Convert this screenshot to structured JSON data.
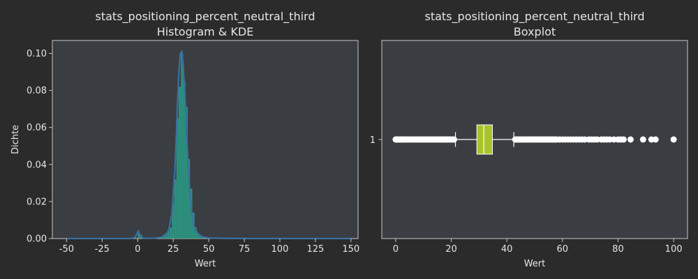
{
  "chart_data": [
    {
      "type": "histogram",
      "title": "stats_positioning_percent_neutral_third",
      "subtitle": "Histogram & KDE",
      "xlabel": "Wert",
      "ylabel": "Dichte",
      "xlim": [
        -60,
        155
      ],
      "ylim": [
        0,
        0.107
      ],
      "xticks": [
        -50,
        -25,
        0,
        25,
        50,
        75,
        100,
        125,
        150
      ],
      "yticks": [
        0.0,
        0.02,
        0.04,
        0.06,
        0.08,
        0.1
      ],
      "grid": false,
      "histogram": {
        "color": "#2a9d86",
        "bin_width": 1.6,
        "bins": [
          {
            "x": 0.0,
            "y": 0.003
          },
          {
            "x": 1.6,
            "y": 0.002
          },
          {
            "x": 16.0,
            "y": 0.001
          },
          {
            "x": 17.6,
            "y": 0.002
          },
          {
            "x": 19.2,
            "y": 0.003
          },
          {
            "x": 20.8,
            "y": 0.004
          },
          {
            "x": 22.4,
            "y": 0.006
          },
          {
            "x": 24.0,
            "y": 0.019
          },
          {
            "x": 25.6,
            "y": 0.032
          },
          {
            "x": 27.2,
            "y": 0.065
          },
          {
            "x": 28.8,
            "y": 0.082
          },
          {
            "x": 30.4,
            "y": 0.1
          },
          {
            "x": 32.0,
            "y": 0.085
          },
          {
            "x": 33.6,
            "y": 0.071
          },
          {
            "x": 35.2,
            "y": 0.043
          },
          {
            "x": 36.8,
            "y": 0.027
          },
          {
            "x": 38.4,
            "y": 0.014
          },
          {
            "x": 40.0,
            "y": 0.006
          },
          {
            "x": 41.6,
            "y": 0.003
          },
          {
            "x": 43.2,
            "y": 0.002
          },
          {
            "x": 44.8,
            "y": 0.001
          }
        ]
      },
      "kde": {
        "color": "#3b6fa0",
        "x": [
          -50,
          -20,
          -5,
          -2,
          -1,
          0,
          0.5,
          1,
          2,
          4,
          10,
          15,
          18,
          20,
          22,
          24,
          26,
          27,
          28,
          29,
          30,
          31,
          32,
          33,
          34,
          35,
          36,
          37,
          38,
          39,
          40,
          42,
          44,
          46,
          50,
          60,
          80,
          100,
          150
        ],
        "y": [
          0,
          0,
          0,
          0.0005,
          0.002,
          0.0035,
          0.004,
          0.003,
          0.0012,
          0.0002,
          0.0001,
          0.0005,
          0.001,
          0.002,
          0.005,
          0.013,
          0.035,
          0.052,
          0.073,
          0.09,
          0.1,
          0.101,
          0.094,
          0.081,
          0.065,
          0.048,
          0.033,
          0.022,
          0.014,
          0.009,
          0.006,
          0.003,
          0.0015,
          0.0008,
          0.0003,
          0.0001,
          0,
          0,
          0
        ]
      }
    },
    {
      "type": "boxplot",
      "title": "stats_positioning_percent_neutral_third",
      "subtitle": "Boxplot",
      "xlabel": "Wert",
      "category": "1",
      "xlim": [
        -5,
        105
      ],
      "xticks": [
        0,
        20,
        40,
        60,
        80,
        100
      ],
      "grid": false,
      "box": {
        "color": "#a8c42a",
        "q1": 29.2,
        "median": 31.7,
        "q3": 34.8,
        "whisker_low": 21.5,
        "whisker_high": 42.5
      },
      "outliers": [
        0,
        0.3,
        0.6,
        1,
        1.4,
        1.8,
        2.2,
        2.6,
        3,
        3.5,
        4,
        4.5,
        5,
        5.5,
        6,
        6.5,
        7,
        7.5,
        8,
        8.5,
        9,
        9.5,
        10,
        10.5,
        11,
        11.5,
        12,
        12.5,
        13,
        13.5,
        14,
        14.5,
        15,
        15.5,
        16,
        16.5,
        17,
        17.5,
        18,
        18.5,
        19,
        19.5,
        20,
        20.5,
        21,
        43,
        43.5,
        44,
        44.5,
        45,
        45.5,
        46,
        46.5,
        47,
        47.5,
        48,
        48.5,
        49,
        49.5,
        50,
        50.5,
        51,
        51.5,
        52,
        52.5,
        53,
        53.5,
        54,
        54.5,
        55,
        55.5,
        56,
        56.5,
        57,
        57.5,
        58,
        59,
        60,
        61,
        62,
        63,
        64,
        65,
        66,
        67,
        68,
        69.5,
        70.5,
        71.5,
        72.5,
        74,
        75,
        76,
        77,
        78.5,
        80,
        81,
        82,
        84.5,
        89,
        92,
        93.5,
        100
      ]
    }
  ]
}
